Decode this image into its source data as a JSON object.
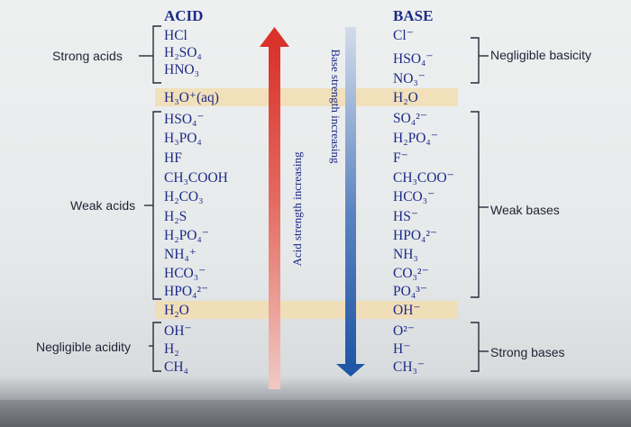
{
  "headers": {
    "acid": "ACID",
    "base": "BASE"
  },
  "groups": {
    "strong_acids": "Strong acids",
    "weak_acids": "Weak acids",
    "negligible_acidity": "Negligible acidity",
    "negligible_basicity": "Negligible basicity",
    "weak_bases": "Weak bases",
    "strong_bases": "Strong bases"
  },
  "arrows": {
    "acid_strength": "Acid strength increasing",
    "base_strength": "Base strength increasing",
    "acid_arrow_color": "#d9322b",
    "base_arrow_color": "#1f56a6"
  },
  "highlight_color": "#f2ddb0",
  "text_color": "#1c2a88",
  "acids": [
    "HCl",
    "H₂SO₄",
    "HNO₃",
    "H₃O⁺(aq)",
    "HSO₄⁻",
    "H₃PO₄",
    "HF",
    "CH₃COOH",
    "H₂CO₃",
    "H₂S",
    "H₂PO₄⁻",
    "NH₄⁺",
    "HCO₃⁻",
    "HPO₄²⁻",
    "H₂O",
    "OH⁻",
    "H₂",
    "CH₄"
  ],
  "bases": [
    "Cl⁻",
    "HSO₄⁻",
    "NO₃⁻",
    "H₂O",
    "SO₄²⁻",
    "H₂PO₄⁻",
    "F⁻",
    "CH₃COO⁻",
    "HCO₃⁻",
    "HS⁻",
    "HPO₄²⁻",
    "NH₃",
    "CO₃²⁻",
    "PO₄³⁻",
    "OH⁻",
    "O²⁻",
    "H⁻",
    "CH₃⁻"
  ]
}
